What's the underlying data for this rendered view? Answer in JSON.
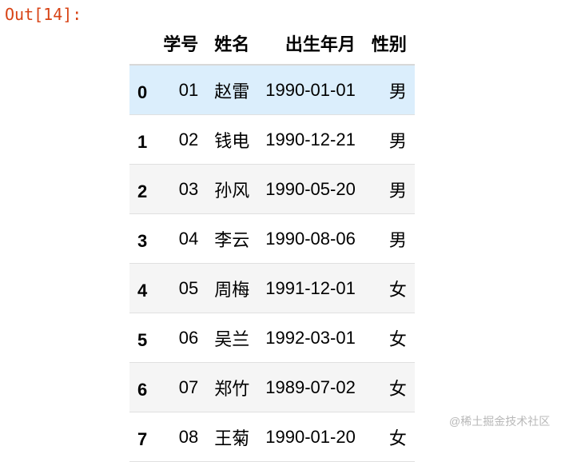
{
  "prompt": "Out[14]:",
  "columns": [
    "学号",
    "姓名",
    "出生年月",
    "性别"
  ],
  "rows": [
    {
      "index": "0",
      "id": "01",
      "name": "赵雷",
      "birth": "1990-01-01",
      "gender": "男"
    },
    {
      "index": "1",
      "id": "02",
      "name": "钱电",
      "birth": "1990-12-21",
      "gender": "男"
    },
    {
      "index": "2",
      "id": "03",
      "name": "孙风",
      "birth": "1990-05-20",
      "gender": "男"
    },
    {
      "index": "3",
      "id": "04",
      "name": "李云",
      "birth": "1990-08-06",
      "gender": "男"
    },
    {
      "index": "4",
      "id": "05",
      "name": "周梅",
      "birth": "1991-12-01",
      "gender": "女"
    },
    {
      "index": "5",
      "id": "06",
      "name": "吴兰",
      "birth": "1992-03-01",
      "gender": "女"
    },
    {
      "index": "6",
      "id": "07",
      "name": "郑竹",
      "birth": "1989-07-02",
      "gender": "女"
    },
    {
      "index": "7",
      "id": "08",
      "name": "王菊",
      "birth": "1990-01-20",
      "gender": "女"
    }
  ],
  "watermark": "@稀土掘金技术社区",
  "colors": {
    "prompt": "#d84315",
    "hover_row": "#dbeefc",
    "stripe_row": "#f5f5f5"
  }
}
